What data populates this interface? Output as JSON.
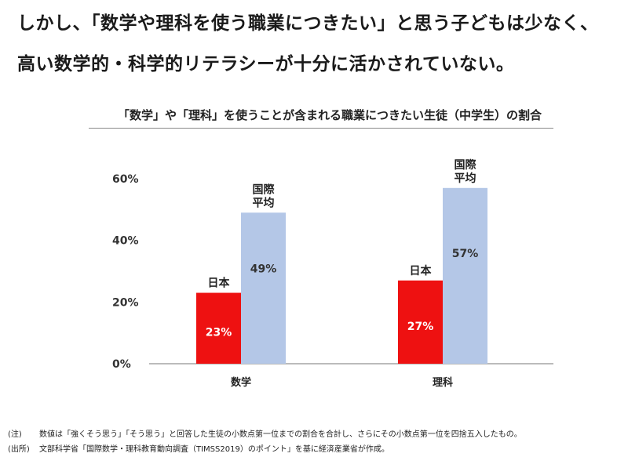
{
  "headline": {
    "line1": "しかし、「数学や理科を使う職業につきたい」と思う子どもは少なく、",
    "line2": "高い数学的・科学的リテラシーが十分に活かされていない。"
  },
  "chart_data": {
    "type": "bar",
    "title": "「数学」や「理科」を使うことが含まれる職業につきたい生徒（中学生）の割合",
    "categories": [
      "数学",
      "理科"
    ],
    "series": [
      {
        "name": "日本",
        "values": [
          23,
          27
        ],
        "color": "#ee1111",
        "label_color": "#ffffff"
      },
      {
        "name": "国際\n平均",
        "values": [
          49,
          57
        ],
        "color": "#b4c7e7",
        "label_color": "#333333"
      }
    ],
    "value_suffix": "%",
    "yticks": [
      "0%",
      "20%",
      "40%",
      "60%"
    ],
    "ylim": [
      0,
      60
    ],
    "grid": false,
    "legend": "none"
  },
  "notes": [
    {
      "label": "(注)",
      "text": "数値は「強くそう思う」「そう思う」と回答した生徒の小数点第一位までの割合を合計し、さらにその小数点第一位を四捨五入したもの。"
    },
    {
      "label": "(出所)",
      "text": "文部科学省「国際数学・理科教育動向調査（TIMSS2019）のポイント」を基に経済産業省が作成。"
    }
  ]
}
